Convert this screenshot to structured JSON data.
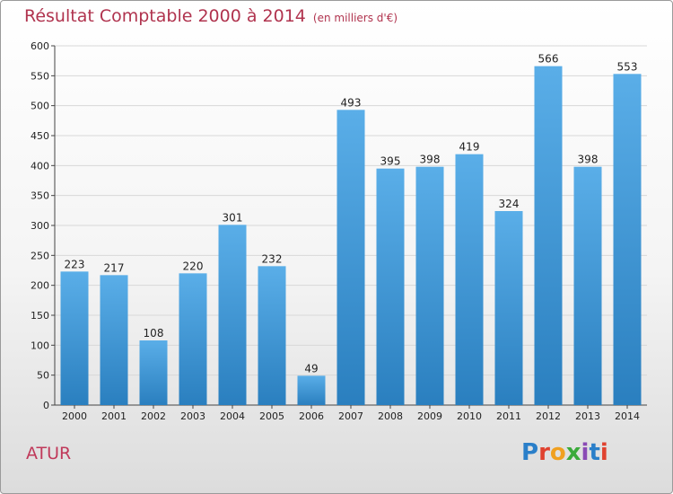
{
  "title": "Résultat Comptable 2000 à 2014",
  "subtitle": "(en milliers d'€)",
  "commune": "ATUR",
  "logo": {
    "text": "Proxiti",
    "letter_colors": [
      "#2a7fc9",
      "#e0422f",
      "#f0a020",
      "#3aaa3a",
      "#8a4bb5",
      "#2a7fc9",
      "#e0422f"
    ]
  },
  "colors": {
    "bar_light": "#5aaee8",
    "bar_dark": "#2a7fbf",
    "grid": "#d8d8d8",
    "title": "#b0334e"
  },
  "chart_data": {
    "type": "bar",
    "title": "Résultat Comptable 2000 à 2014",
    "subtitle": "(en milliers d'€)",
    "xlabel": "",
    "ylabel": "",
    "categories": [
      "2000",
      "2001",
      "2002",
      "2003",
      "2004",
      "2005",
      "2006",
      "2007",
      "2008",
      "2009",
      "2010",
      "2011",
      "2012",
      "2013",
      "2014"
    ],
    "values": [
      223,
      217,
      108,
      220,
      301,
      232,
      49,
      493,
      395,
      398,
      419,
      324,
      566,
      398,
      553
    ],
    "ylim": [
      0,
      600
    ],
    "yticks": [
      0,
      50,
      100,
      150,
      200,
      250,
      300,
      350,
      400,
      450,
      500,
      550,
      600
    ],
    "grid": true,
    "data_labels": true
  }
}
